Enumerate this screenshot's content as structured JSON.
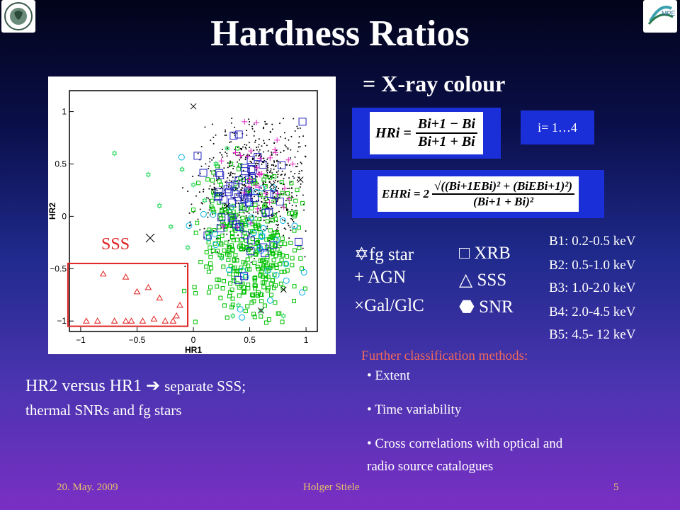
{
  "title": "Hardness Ratios",
  "subtitle": "= X-ray colour",
  "formula1": {
    "lhs": "HRi =",
    "num": "Bi+1 − Bi",
    "den": "Bi+1 + Bi"
  },
  "index_text": "i= 1…4",
  "formula2": {
    "lhs": "EHRi =",
    "factor": "2",
    "num": "√((Bi+1EBi)² + (BiEBi+1)²)",
    "den": "(Bi+1 + Bi)²"
  },
  "legend": {
    "col1": [
      "fg star",
      "+ AGN",
      "Gal/GlC"
    ],
    "col2": [
      "XRB",
      "SSS",
      "SNR"
    ],
    "symbols": {
      "fg_star": "✡",
      "gal": "×",
      "xrb": "□",
      "sss": "△",
      "snr": "⬣"
    }
  },
  "energy_bands": [
    "B1: 0.2-0.5 keV",
    "B2: 0.5-1.0 keV",
    "B3: 1.0-2.0 keV",
    "B4: 2.0-4.5 keV",
    "B5: 4.5- 12 keV"
  ],
  "further_title": "Further classification methods:",
  "bullets": [
    "Extent",
    "Time variability",
    "Cross correlations with optical and",
    "radio source catalogues"
  ],
  "caption": {
    "part1": "HR2 versus HR1",
    "arrow": "➔",
    "part2": "separate SSS;",
    "line2": "thermal SNRs and fg stars"
  },
  "footer": {
    "date": "20. May. 2009",
    "author": "Holger Stiele",
    "page": "5"
  },
  "chart_data": {
    "type": "scatter",
    "xlabel": "HR1",
    "ylabel": "HR2",
    "xlim": [
      -1.1,
      1.1
    ],
    "ylim": [
      -1.1,
      1.2
    ],
    "x_ticks": [
      "−1",
      "−0.5",
      "0",
      "0.5",
      "1"
    ],
    "y_ticks": [
      "−1",
      "−0.5",
      "0",
      "0.5",
      "1"
    ],
    "annotation": "SSS",
    "sss_region": {
      "x": [
        -1.0,
        -0.05
      ],
      "y": [
        -1.05,
        -0.45
      ]
    },
    "colors": {
      "sss": "#e02020",
      "snr": "#00c000",
      "fg": "#00d040",
      "xrb": "#2020c0",
      "agn": "#e020c0",
      "gal": "#000000",
      "other": "#00b0e0"
    }
  }
}
